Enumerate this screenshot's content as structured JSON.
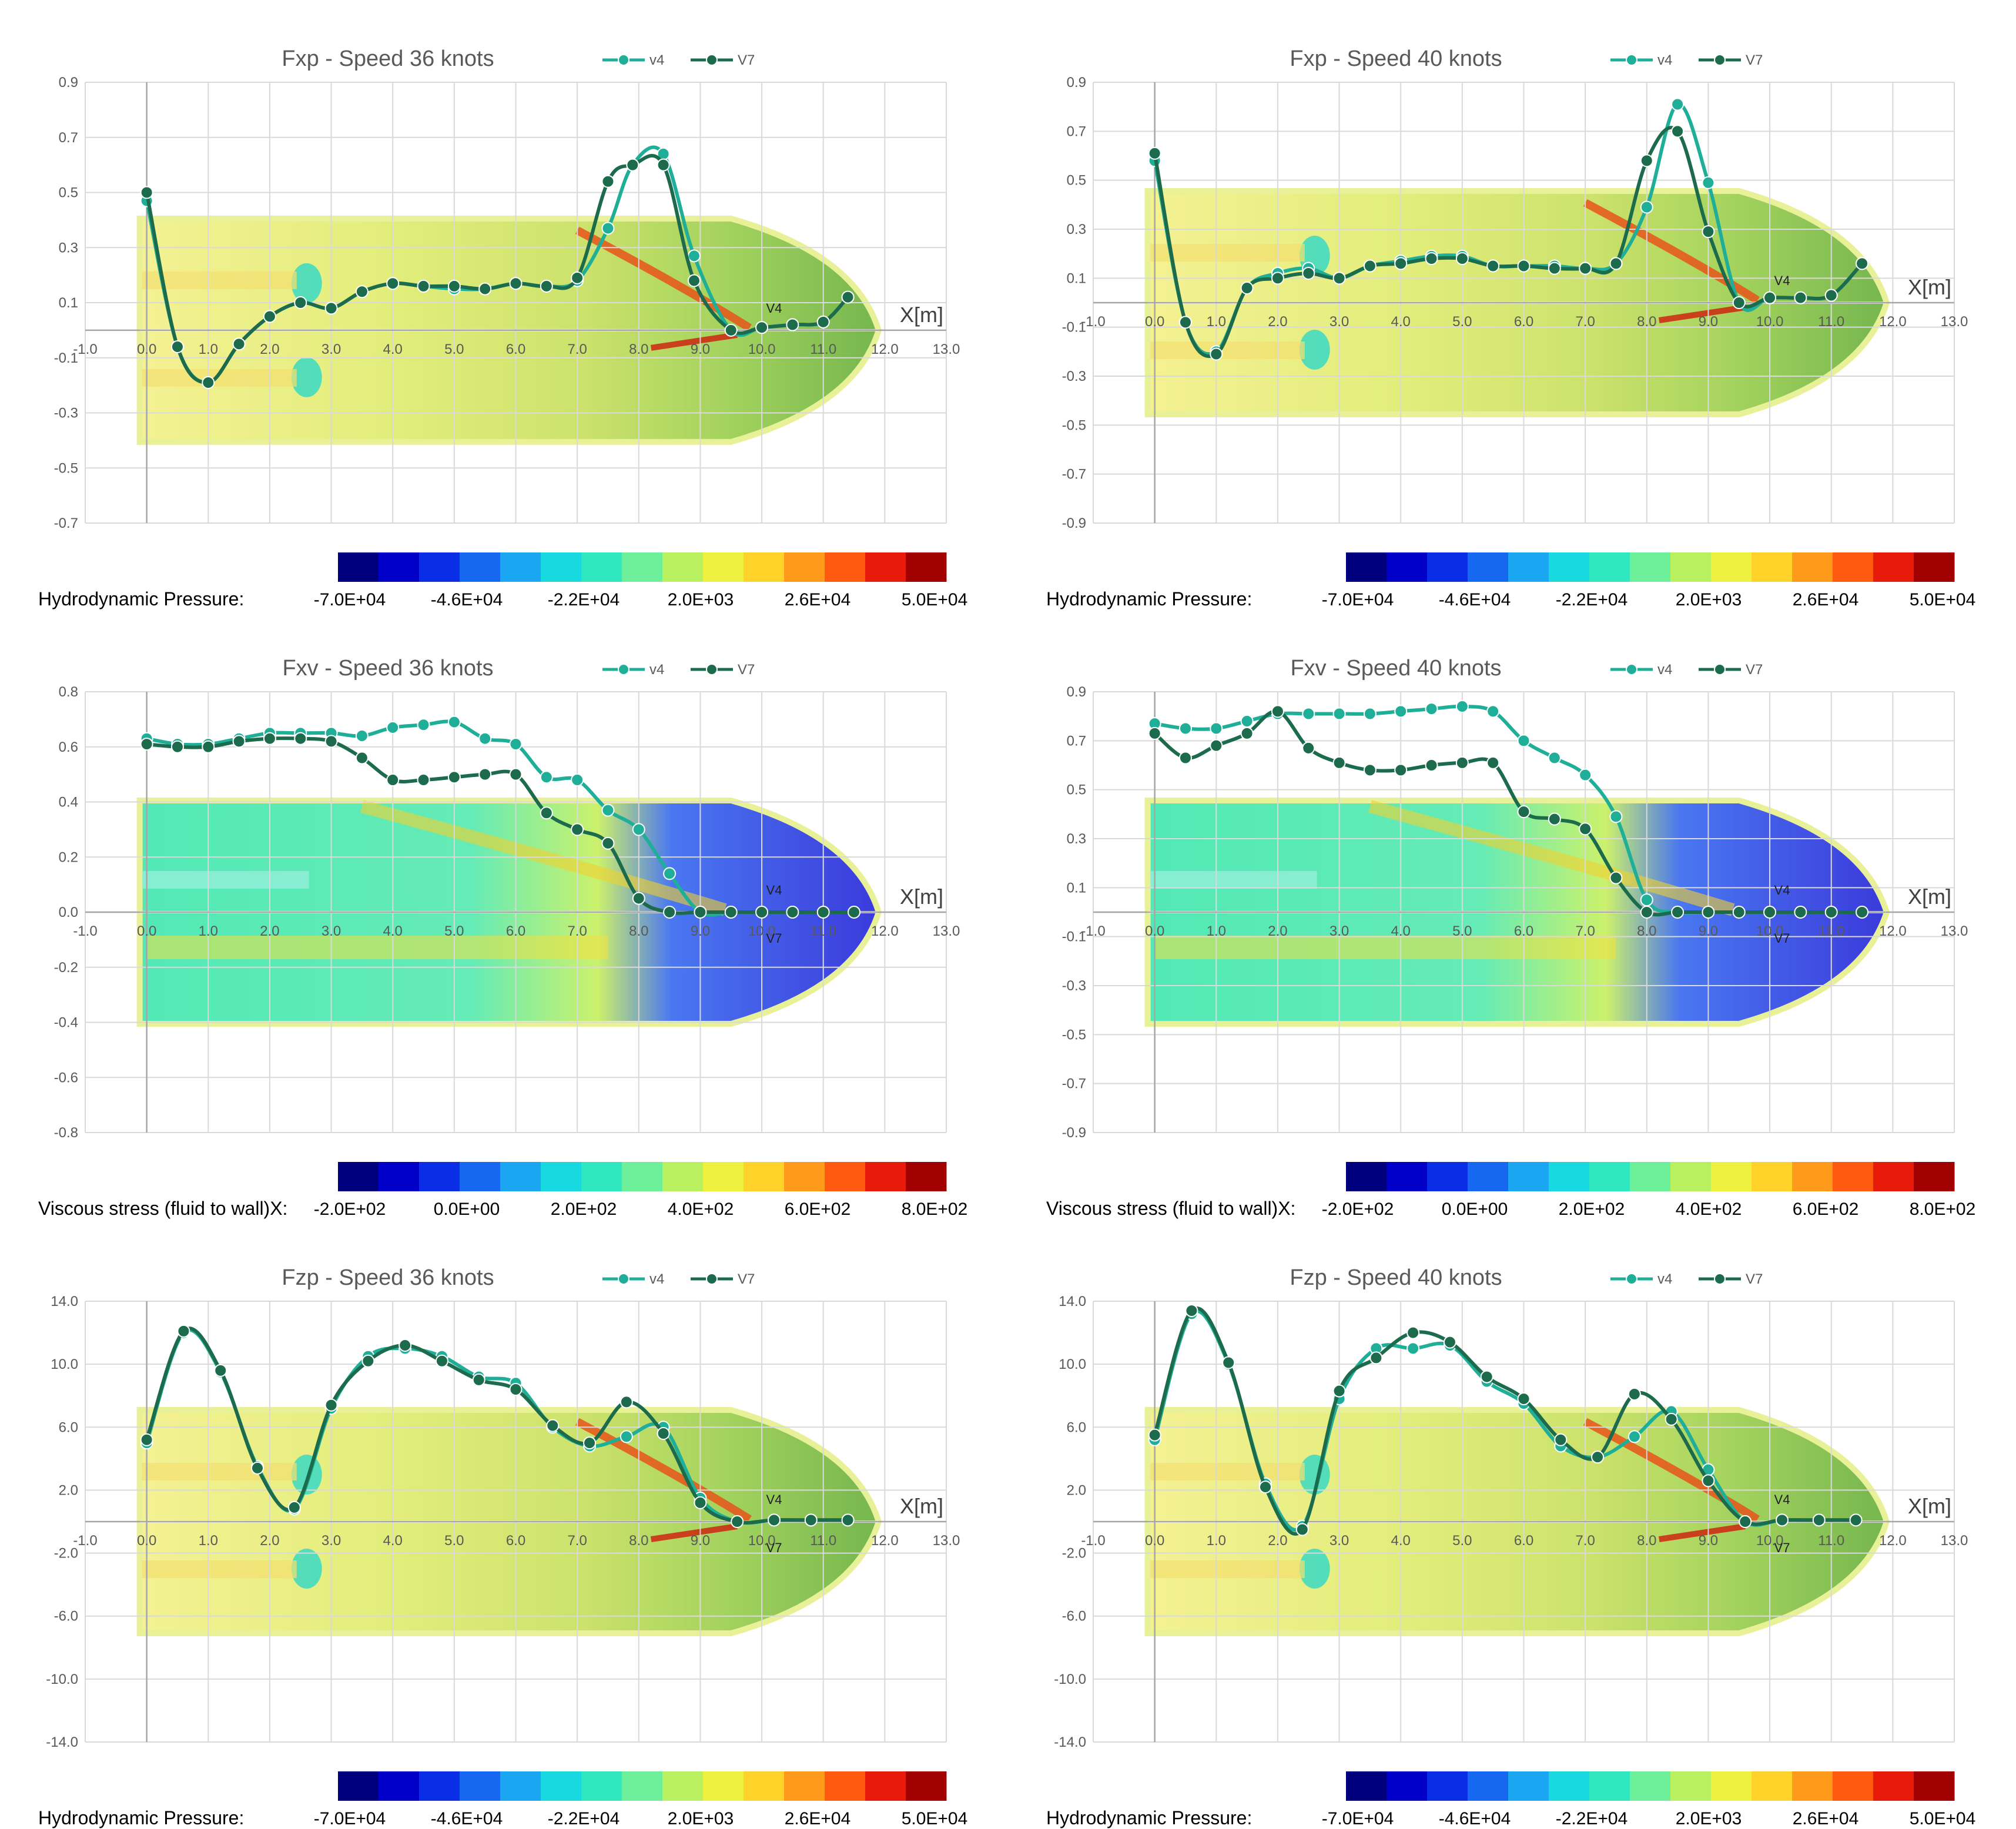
{
  "colors": {
    "v4": "#1fae98",
    "v7": "#1b6b4c",
    "grid": "#d9d9d9",
    "colormap": [
      "#00007f",
      "#0000c8",
      "#0a2ee6",
      "#1668f0",
      "#1aa6f0",
      "#18d8e0",
      "#30e8c0",
      "#6ef09a",
      "#b8f060",
      "#eef040",
      "#ffd22a",
      "#ff9a1a",
      "#ff5a10",
      "#e81a0a",
      "#a00000"
    ]
  },
  "charts": [
    {
      "id": "fxp-36",
      "title": "Fxp - Speed 36 knots",
      "contour": "pressure",
      "colorbar": {
        "label": "Hydrodynamic Pressure:",
        "ticks": [
          "-7.0E+04",
          "-4.6E+04",
          "-2.2E+04",
          "2.0E+03",
          "2.6E+04",
          "5.0E+04"
        ]
      },
      "axis_unit": "X[m]",
      "station_labels": [
        "V4"
      ]
    },
    {
      "id": "fxp-40",
      "title": "Fxp - Speed 40 knots",
      "contour": "pressure",
      "colorbar": {
        "label": "Hydrodynamic Pressure:",
        "ticks": [
          "-7.0E+04",
          "-4.6E+04",
          "-2.2E+04",
          "2.0E+03",
          "2.6E+04",
          "5.0E+04"
        ]
      },
      "axis_unit": "X[m]",
      "station_labels": [
        "V4"
      ]
    },
    {
      "id": "fxv-36",
      "title": "Fxv - Speed 36 knots",
      "contour": "viscous",
      "colorbar": {
        "label": "Viscous stress (fluid to wall)X:",
        "ticks": [
          "-2.0E+02",
          "0.0E+00",
          "2.0E+02",
          "4.0E+02",
          "6.0E+02",
          "8.0E+02"
        ]
      },
      "axis_unit": "X[m]",
      "station_labels": [
        "V4",
        "V7"
      ]
    },
    {
      "id": "fxv-40",
      "title": "Fxv - Speed 40 knots",
      "contour": "viscous",
      "colorbar": {
        "label": "Viscous stress (fluid to wall)X:",
        "ticks": [
          "-2.0E+02",
          "0.0E+00",
          "2.0E+02",
          "4.0E+02",
          "6.0E+02",
          "8.0E+02"
        ]
      },
      "axis_unit": "X[m]",
      "station_labels": [
        "V4",
        "V7"
      ]
    },
    {
      "id": "fzp-36",
      "title": "Fzp - Speed 36 knots",
      "contour": "pressure",
      "colorbar": {
        "label": "Hydrodynamic Pressure:",
        "ticks": [
          "-7.0E+04",
          "-4.6E+04",
          "-2.2E+04",
          "2.0E+03",
          "2.6E+04",
          "5.0E+04"
        ]
      },
      "axis_unit": "X[m]",
      "station_labels": [
        "V4",
        "V7"
      ]
    },
    {
      "id": "fzp-40",
      "title": "Fzp - Speed 40 knots",
      "contour": "pressure",
      "colorbar": {
        "label": "Hydrodynamic Pressure:",
        "ticks": [
          "-7.0E+04",
          "-4.6E+04",
          "-2.2E+04",
          "2.0E+03",
          "2.6E+04",
          "5.0E+04"
        ]
      },
      "axis_unit": "X[m]",
      "station_labels": [
        "V4",
        "V7"
      ]
    }
  ],
  "chart_data": [
    {
      "type": "line",
      "title": "Fxp - Speed 36 knots",
      "xlim": [
        -1.0,
        13.0
      ],
      "ylim": [
        -0.7,
        0.9
      ],
      "x_ticks": [
        "-1.0",
        "0.0",
        "1.0",
        "2.0",
        "3.0",
        "4.0",
        "5.0",
        "6.0",
        "7.0",
        "8.0",
        "9.0",
        "10.0",
        "11.0",
        "12.0",
        "13.0"
      ],
      "y_ticks": [
        "0.9",
        "0.7",
        "0.5",
        "0.3",
        "0.1",
        "-0.1",
        "-0.3",
        "-0.5",
        "-0.7"
      ],
      "grid": true,
      "legend": "top-right",
      "series": [
        {
          "name": "v4",
          "x": [
            0.0,
            0.5,
            1.0,
            1.5,
            2.0,
            2.5,
            3.0,
            3.5,
            4.0,
            4.5,
            5.0,
            5.5,
            6.0,
            6.5,
            7.0,
            7.5,
            7.9,
            8.4,
            8.9,
            9.5,
            10.0,
            10.5,
            11.0,
            11.4
          ],
          "y": [
            0.47,
            -0.06,
            -0.19,
            -0.05,
            0.05,
            0.1,
            0.08,
            0.14,
            0.17,
            0.16,
            0.15,
            0.15,
            0.17,
            0.16,
            0.18,
            0.37,
            0.6,
            0.64,
            0.27,
            0.0,
            0.01,
            0.02,
            0.03,
            0.12
          ]
        },
        {
          "name": "V7",
          "x": [
            0.0,
            0.5,
            1.0,
            1.5,
            2.0,
            2.5,
            3.0,
            3.5,
            4.0,
            4.5,
            5.0,
            5.5,
            6.0,
            6.5,
            7.0,
            7.5,
            7.9,
            8.4,
            8.9,
            9.5,
            10.0,
            10.5,
            11.0,
            11.4
          ],
          "y": [
            0.5,
            -0.06,
            -0.19,
            -0.05,
            0.05,
            0.1,
            0.08,
            0.14,
            0.17,
            0.16,
            0.16,
            0.15,
            0.17,
            0.16,
            0.19,
            0.54,
            0.6,
            0.6,
            0.18,
            0.0,
            0.01,
            0.02,
            0.03,
            0.12
          ]
        }
      ]
    },
    {
      "type": "line",
      "title": "Fxp - Speed 40 knots",
      "xlim": [
        -1.0,
        13.0
      ],
      "ylim": [
        -0.9,
        0.9
      ],
      "x_ticks": [
        "-1.0",
        "0.0",
        "1.0",
        "2.0",
        "3.0",
        "4.0",
        "5.0",
        "6.0",
        "7.0",
        "8.0",
        "9.0",
        "10.0",
        "11.0",
        "12.0",
        "13.0"
      ],
      "y_ticks": [
        "0.9",
        "0.7",
        "0.5",
        "0.3",
        "0.1",
        "-0.1",
        "-0.3",
        "-0.5",
        "-0.7",
        "-0.9"
      ],
      "grid": true,
      "legend": "top-right",
      "series": [
        {
          "name": "v4",
          "x": [
            0.0,
            0.5,
            1.0,
            1.5,
            2.0,
            2.5,
            3.0,
            3.5,
            4.0,
            4.5,
            5.0,
            5.5,
            6.0,
            6.5,
            7.0,
            7.5,
            8.0,
            8.5,
            9.0,
            9.5,
            10.0,
            10.5,
            11.0,
            11.5
          ],
          "y": [
            0.58,
            -0.08,
            -0.2,
            0.06,
            0.12,
            0.14,
            0.1,
            0.15,
            0.17,
            0.19,
            0.19,
            0.15,
            0.15,
            0.15,
            0.14,
            0.16,
            0.39,
            0.81,
            0.49,
            0.0,
            0.02,
            0.02,
            0.03,
            0.16
          ]
        },
        {
          "name": "V7",
          "x": [
            0.0,
            0.5,
            1.0,
            1.5,
            2.0,
            2.5,
            3.0,
            3.5,
            4.0,
            4.5,
            5.0,
            5.5,
            6.0,
            6.5,
            7.0,
            7.5,
            8.0,
            8.5,
            9.0,
            9.5,
            10.0,
            10.5,
            11.0,
            11.5
          ],
          "y": [
            0.61,
            -0.08,
            -0.21,
            0.06,
            0.1,
            0.12,
            0.1,
            0.15,
            0.16,
            0.18,
            0.18,
            0.15,
            0.15,
            0.14,
            0.14,
            0.16,
            0.58,
            0.7,
            0.29,
            0.0,
            0.02,
            0.02,
            0.03,
            0.16
          ]
        }
      ]
    },
    {
      "type": "line",
      "title": "Fxv - Speed 36 knots",
      "xlim": [
        -1.0,
        13.0
      ],
      "ylim": [
        -0.8,
        0.8
      ],
      "x_ticks": [
        "-1.0",
        "0.0",
        "1.0",
        "2.0",
        "3.0",
        "4.0",
        "5.0",
        "6.0",
        "7.0",
        "8.0",
        "9.0",
        "10.0",
        "11.0",
        "12.0",
        "13.0"
      ],
      "y_ticks": [
        "0.8",
        "0.6",
        "0.4",
        "0.2",
        "0.0",
        "-0.2",
        "-0.4",
        "-0.6",
        "-0.8"
      ],
      "grid": true,
      "legend": "top-right",
      "series": [
        {
          "name": "v4",
          "x": [
            0.0,
            0.5,
            1.0,
            1.5,
            2.0,
            2.5,
            3.0,
            3.5,
            4.0,
            4.5,
            5.0,
            5.5,
            6.0,
            6.5,
            7.0,
            7.5,
            8.0,
            8.5,
            9.0,
            9.5,
            10.0,
            10.5,
            11.0,
            11.5
          ],
          "y": [
            0.63,
            0.61,
            0.61,
            0.63,
            0.65,
            0.65,
            0.65,
            0.64,
            0.67,
            0.68,
            0.69,
            0.63,
            0.61,
            0.49,
            0.48,
            0.37,
            0.3,
            0.14,
            0.0,
            0.0,
            0.0,
            0.0,
            0.0,
            0.0
          ]
        },
        {
          "name": "V7",
          "x": [
            0.0,
            0.5,
            1.0,
            1.5,
            2.0,
            2.5,
            3.0,
            3.5,
            4.0,
            4.5,
            5.0,
            5.5,
            6.0,
            6.5,
            7.0,
            7.5,
            8.0,
            8.5,
            9.0,
            9.5,
            10.0,
            10.5,
            11.0,
            11.5
          ],
          "y": [
            0.61,
            0.6,
            0.6,
            0.62,
            0.63,
            0.63,
            0.62,
            0.56,
            0.48,
            0.48,
            0.49,
            0.5,
            0.5,
            0.36,
            0.3,
            0.25,
            0.05,
            0.0,
            0.0,
            0.0,
            0.0,
            0.0,
            0.0,
            0.0
          ]
        }
      ]
    },
    {
      "type": "line",
      "title": "Fxv - Speed 40 knots",
      "xlim": [
        -1.0,
        13.0
      ],
      "ylim": [
        -0.9,
        0.9
      ],
      "x_ticks": [
        "-1.0",
        "0.0",
        "1.0",
        "2.0",
        "3.0",
        "4.0",
        "5.0",
        "6.0",
        "7.0",
        "8.0",
        "9.0",
        "10.0",
        "11.0",
        "12.0",
        "13.0"
      ],
      "y_ticks": [
        "0.9",
        "0.7",
        "0.5",
        "0.3",
        "0.1",
        "-0.1",
        "-0.3",
        "-0.5",
        "-0.7",
        "-0.9"
      ],
      "grid": true,
      "legend": "top-right",
      "series": [
        {
          "name": "v4",
          "x": [
            0.0,
            0.5,
            1.0,
            1.5,
            2.0,
            2.5,
            3.0,
            3.5,
            4.0,
            4.5,
            5.0,
            5.5,
            6.0,
            6.5,
            7.0,
            7.5,
            8.0,
            8.5,
            9.0,
            9.5,
            10.0,
            10.5,
            11.0,
            11.5
          ],
          "y": [
            0.77,
            0.75,
            0.75,
            0.78,
            0.81,
            0.81,
            0.81,
            0.81,
            0.82,
            0.83,
            0.84,
            0.82,
            0.7,
            0.63,
            0.56,
            0.39,
            0.05,
            0.0,
            0.0,
            0.0,
            0.0,
            0.0,
            0.0,
            0.0
          ]
        },
        {
          "name": "V7",
          "x": [
            0.0,
            0.5,
            1.0,
            1.5,
            2.0,
            2.5,
            3.0,
            3.5,
            4.0,
            4.5,
            5.0,
            5.5,
            6.0,
            6.5,
            7.0,
            7.5,
            8.0,
            8.5,
            9.0,
            9.5,
            10.0,
            10.5,
            11.0,
            11.5
          ],
          "y": [
            0.73,
            0.63,
            0.68,
            0.73,
            0.82,
            0.67,
            0.61,
            0.58,
            0.58,
            0.6,
            0.61,
            0.61,
            0.41,
            0.38,
            0.34,
            0.14,
            0.0,
            0.0,
            0.0,
            0.0,
            0.0,
            0.0,
            0.0,
            0.0
          ]
        }
      ]
    },
    {
      "type": "line",
      "title": "Fzp - Speed 36 knots",
      "xlim": [
        -1.0,
        13.0
      ],
      "ylim": [
        -14.0,
        14.0
      ],
      "x_ticks": [
        "-1.0",
        "0.0",
        "1.0",
        "2.0",
        "3.0",
        "4.0",
        "5.0",
        "6.0",
        "7.0",
        "8.0",
        "9.0",
        "10.0",
        "11.0",
        "12.0",
        "13.0"
      ],
      "y_ticks": [
        "14.0",
        "10.0",
        "6.0",
        "2.0",
        "-2.0",
        "-6.0",
        "-10.0",
        "-14.0"
      ],
      "grid": true,
      "legend": "top-right",
      "series": [
        {
          "name": "v4",
          "x": [
            0.0,
            0.6,
            1.2,
            1.8,
            2.4,
            3.0,
            3.6,
            4.2,
            4.8,
            5.4,
            6.0,
            6.6,
            7.2,
            7.8,
            8.4,
            9.0,
            9.6,
            10.2,
            10.8,
            11.4
          ],
          "y": [
            5.0,
            12.0,
            9.5,
            3.5,
            0.8,
            7.2,
            10.5,
            11.0,
            10.5,
            9.2,
            8.8,
            6.0,
            4.8,
            5.4,
            6.0,
            1.5,
            0.0,
            0.1,
            0.1,
            0.1
          ]
        },
        {
          "name": "V7",
          "x": [
            0.0,
            0.6,
            1.2,
            1.8,
            2.4,
            3.0,
            3.6,
            4.2,
            4.8,
            5.4,
            6.0,
            6.6,
            7.2,
            7.8,
            8.4,
            9.0,
            9.6,
            10.2,
            10.8,
            11.4
          ],
          "y": [
            5.2,
            12.1,
            9.6,
            3.4,
            0.9,
            7.4,
            10.2,
            11.2,
            10.2,
            9.0,
            8.4,
            6.1,
            5.0,
            7.6,
            5.6,
            1.2,
            0.0,
            0.1,
            0.1,
            0.1
          ]
        }
      ]
    },
    {
      "type": "line",
      "title": "Fzp - Speed 40 knots",
      "xlim": [
        -1.0,
        13.0
      ],
      "ylim": [
        -14.0,
        14.0
      ],
      "x_ticks": [
        "-1.0",
        "0.0",
        "1.0",
        "2.0",
        "3.0",
        "4.0",
        "5.0",
        "6.0",
        "7.0",
        "8.0",
        "9.0",
        "10.0",
        "11.0",
        "12.0",
        "13.0"
      ],
      "y_ticks": [
        "14.0",
        "10.0",
        "6.0",
        "2.0",
        "-2.0",
        "-6.0",
        "-10.0",
        "-14.0"
      ],
      "grid": true,
      "legend": "top-right",
      "series": [
        {
          "name": "v4",
          "x": [
            0.0,
            0.6,
            1.2,
            1.8,
            2.4,
            3.0,
            3.6,
            4.2,
            4.8,
            5.4,
            6.0,
            6.6,
            7.2,
            7.8,
            8.4,
            9.0,
            9.6,
            10.2,
            10.8,
            11.4
          ],
          "y": [
            5.2,
            13.2,
            10.0,
            2.4,
            -0.3,
            7.8,
            11.0,
            11.0,
            11.2,
            8.9,
            7.5,
            4.8,
            4.1,
            5.4,
            7.0,
            3.3,
            0.0,
            0.1,
            0.1,
            0.1
          ]
        },
        {
          "name": "V7",
          "x": [
            0.0,
            0.6,
            1.2,
            1.8,
            2.4,
            3.0,
            3.6,
            4.2,
            4.8,
            5.4,
            6.0,
            6.6,
            7.2,
            7.8,
            8.4,
            9.0,
            9.6,
            10.2,
            10.8,
            11.4
          ],
          "y": [
            5.5,
            13.4,
            10.1,
            2.2,
            -0.5,
            8.3,
            10.4,
            12.0,
            11.4,
            9.2,
            7.8,
            5.2,
            4.1,
            8.1,
            6.5,
            2.6,
            0.0,
            0.1,
            0.1,
            0.1
          ]
        }
      ]
    }
  ]
}
